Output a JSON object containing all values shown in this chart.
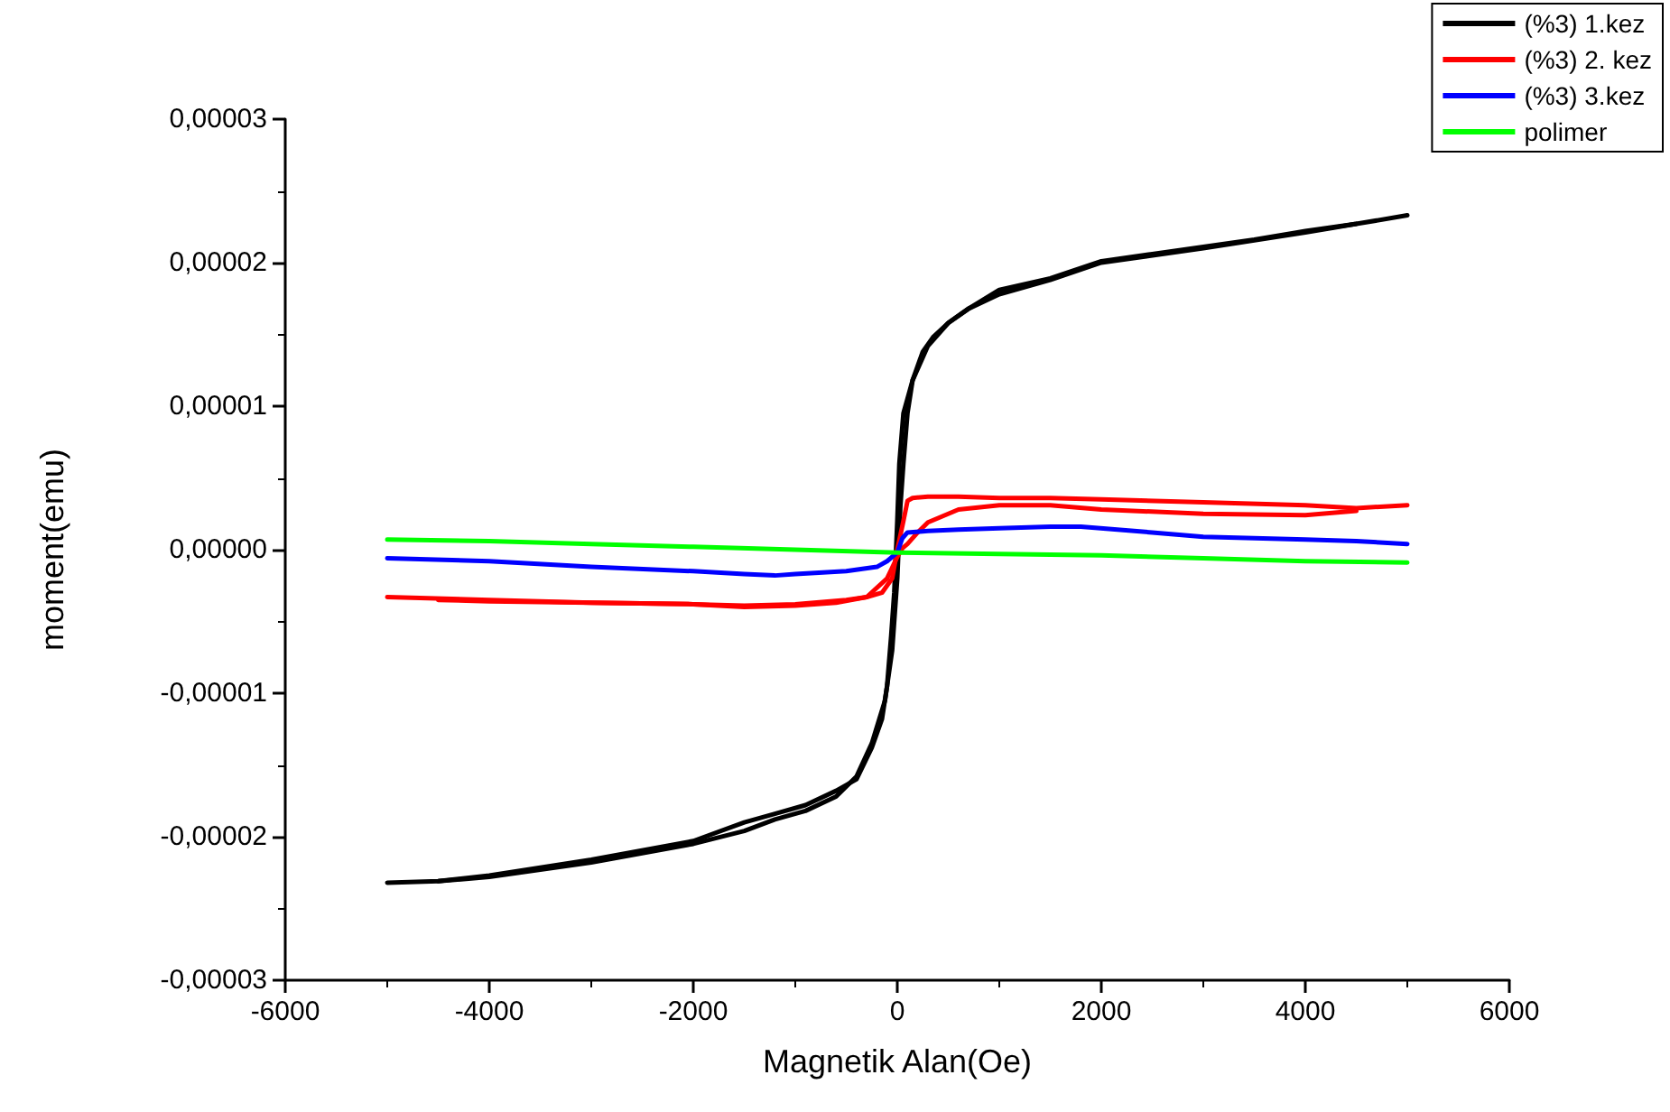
{
  "chart_data": {
    "type": "line",
    "xlabel": "Magnetik Alan(Oe)",
    "ylabel": "moment(emu)",
    "xlim": [
      -6000,
      6000
    ],
    "xticks": [
      -6000,
      -4000,
      -2000,
      0,
      2000,
      4000,
      6000
    ],
    "ylim": [
      -3e-05,
      3e-05
    ],
    "yticks": [
      {
        "value": -3e-05,
        "label": "-0,00003"
      },
      {
        "value": -2e-05,
        "label": "-0,00002"
      },
      {
        "value": -1e-05,
        "label": "-0,00001"
      },
      {
        "value": 0,
        "label": "0,00000"
      },
      {
        "value": 1e-05,
        "label": "0,00001"
      },
      {
        "value": 2e-05,
        "label": "0,00002"
      },
      {
        "value": 3e-05,
        "label": "0,00003"
      }
    ],
    "grid": false,
    "legend": "top right",
    "marker": "none",
    "line_style": "solid",
    "series": [
      {
        "name": "(%3) 1.kez",
        "color": "#000000",
        "x": [
          -5000,
          -4500,
          -4000,
          -3000,
          -2000,
          -1500,
          -1200,
          -900,
          -600,
          -400,
          -250,
          -120,
          -50,
          0,
          30,
          60,
          100,
          150,
          250,
          350,
          500,
          700,
          1000,
          1500,
          2000,
          2500,
          3000,
          3500,
          4000,
          4500,
          5000
        ],
        "values": [
          -2.32e-05,
          -2.31e-05,
          -2.28e-05,
          -2.18e-05,
          -2.05e-05,
          -1.96e-05,
          -1.88e-05,
          -1.82e-05,
          -1.72e-05,
          -1.58e-05,
          -1.35e-05,
          -1.05e-05,
          -7e-06,
          -2e-06,
          3e-06,
          6e-06,
          9.5e-06,
          1.18e-05,
          1.38e-05,
          1.48e-05,
          1.58e-05,
          1.68e-05,
          1.81e-05,
          1.89e-05,
          2.01e-05,
          2.06e-05,
          2.11e-05,
          2.16e-05,
          2.22e-05,
          2.27e-05,
          2.33e-05
        ]
      },
      {
        "color": "#000000",
        "x": [
          -4500,
          -4000,
          -3000,
          -2000,
          -1500,
          -1200,
          -900,
          -600,
          -400,
          -250,
          -150,
          -100,
          -60,
          -30,
          0,
          20,
          60,
          150,
          300,
          500,
          700,
          1000,
          1500,
          2000,
          3000,
          4000,
          4500
        ],
        "values": [
          -2.31e-05,
          -2.27e-05,
          -2.16e-05,
          -2.03e-05,
          -1.9e-05,
          -1.84e-05,
          -1.78e-05,
          -1.68e-05,
          -1.6e-05,
          -1.38e-05,
          -1.18e-05,
          -9.5e-06,
          -6e-06,
          -3e-06,
          2e-06,
          6e-06,
          9.5e-06,
          1.18e-05,
          1.42e-05,
          1.58e-05,
          1.68e-05,
          1.78e-05,
          1.88e-05,
          2e-05,
          2.1e-05,
          2.21e-05,
          2.27e-05
        ]
      },
      {
        "name": "(%3) 2. kez",
        "color": "#ff0000",
        "x": [
          -5000,
          -4000,
          -3000,
          -2000,
          -1500,
          -1000,
          -500,
          -300,
          -150,
          -50,
          0,
          60,
          100,
          150,
          300,
          600,
          1000,
          1500,
          2000,
          3000,
          4000,
          4500,
          5000
        ],
        "values": [
          -3.3e-06,
          -3.5e-06,
          -3.7e-06,
          -3.8e-06,
          -3.9e-06,
          -3.8e-06,
          -3.5e-06,
          -3.3e-06,
          -3e-06,
          -2e-06,
          0,
          2e-06,
          3.4e-06,
          3.6e-06,
          3.7e-06,
          3.7e-06,
          3.6e-06,
          3.6e-06,
          3.5e-06,
          3.3e-06,
          3.1e-06,
          2.9e-06,
          3.1e-06
        ]
      },
      {
        "color": "#ff0000",
        "x": [
          -4500,
          -4000,
          -3000,
          -2000,
          -1500,
          -1000,
          -600,
          -300,
          -100,
          0,
          50,
          100,
          200,
          300,
          600,
          1000,
          1500,
          2000,
          3000,
          4000,
          4500
        ],
        "values": [
          -3.5e-06,
          -3.6e-06,
          -3.7e-06,
          -3.8e-06,
          -4e-06,
          -3.9e-06,
          -3.7e-06,
          -3.3e-06,
          -2e-06,
          -5e-07,
          1e-07,
          4e-07,
          1.2e-06,
          1.9e-06,
          2.8e-06,
          3.1e-06,
          3.1e-06,
          2.8e-06,
          2.5e-06,
          2.4e-06,
          2.7e-06
        ]
      },
      {
        "name": "(%3) 3.kez",
        "color": "#0000ff",
        "x": [
          -5000,
          -4000,
          -3000,
          -2000,
          -1500,
          -1200,
          -1000,
          -500,
          -200,
          -100,
          0,
          50,
          100,
          300,
          600,
          1000,
          1500,
          1800,
          2500,
          3000,
          4000,
          4500,
          5000
        ],
        "values": [
          -6e-07,
          -8e-07,
          -1.2e-06,
          -1.5e-06,
          -1.7e-06,
          -1.8e-06,
          -1.7e-06,
          -1.5e-06,
          -1.2e-06,
          -8e-07,
          -2e-07,
          8e-07,
          1.2e-06,
          1.3e-06,
          1.4e-06,
          1.5e-06,
          1.6e-06,
          1.6e-06,
          1.2e-06,
          9e-07,
          7e-07,
          6e-07,
          4e-07
        ]
      },
      {
        "name": "polimer",
        "color": "#00ff00",
        "x": [
          -5000,
          -4000,
          -3000,
          -2000,
          -1000,
          0,
          1000,
          2000,
          3000,
          4000,
          5000
        ],
        "values": [
          7e-07,
          6e-07,
          4e-07,
          2e-07,
          0,
          -2e-07,
          -3e-07,
          -4e-07,
          -6e-07,
          -8e-07,
          -9e-07
        ]
      }
    ]
  }
}
